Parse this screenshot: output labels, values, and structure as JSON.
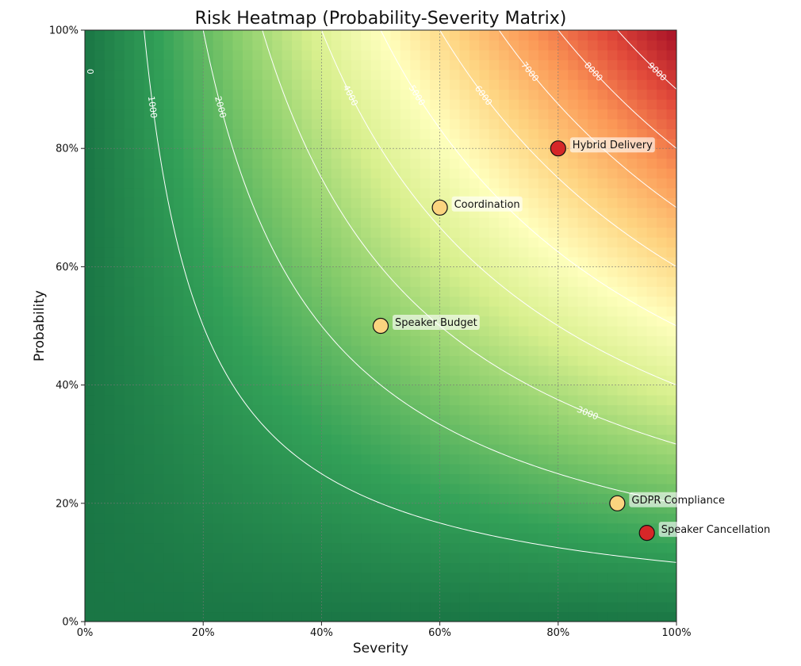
{
  "chart_data": {
    "type": "heatmap",
    "title": "Risk Heatmap (Probability-Severity Matrix)",
    "xlabel": "Severity",
    "ylabel": "Probability",
    "xlim": [
      0,
      100
    ],
    "ylim": [
      0,
      100
    ],
    "x_ticks": [
      "0%",
      "20%",
      "40%",
      "60%",
      "80%",
      "100%"
    ],
    "y_ticks": [
      "0%",
      "20%",
      "40%",
      "60%",
      "80%",
      "100%"
    ],
    "grid": true,
    "colormap": "RdYlGn_r",
    "colormap_stops": [
      "#1a7645",
      "#33a158",
      "#86cc6b",
      "#d7ef8d",
      "#ffffbd",
      "#fed27f",
      "#fb9756",
      "#e1493a",
      "#a50f26"
    ],
    "surface": "probability × severity",
    "value_range": [
      0,
      10000
    ],
    "contour_levels": [
      "0",
      "1000",
      "2000",
      "3000",
      "4000",
      "5000",
      "6000",
      "7000",
      "8000",
      "9000"
    ],
    "risks": [
      {
        "name": "Hybrid Delivery",
        "severity": 80,
        "probability": 80,
        "color": "#d62728"
      },
      {
        "name": "Coordination",
        "severity": 60,
        "probability": 70,
        "color": "#fbd47f"
      },
      {
        "name": "Speaker Budget",
        "severity": 50,
        "probability": 50,
        "color": "#fbd47f"
      },
      {
        "name": "GDPR Compliance",
        "severity": 90,
        "probability": 20,
        "color": "#fbd47f"
      },
      {
        "name": "Speaker Cancellation",
        "severity": 95,
        "probability": 15,
        "color": "#d62728"
      }
    ]
  }
}
